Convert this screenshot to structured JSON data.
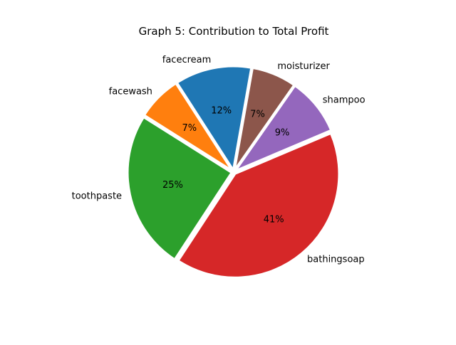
{
  "chart_data": {
    "type": "pie",
    "title": "Graph 5: Contribution to Total Profit",
    "categories": [
      "facecream",
      "facewash",
      "toothpaste",
      "bathingsoap",
      "shampoo",
      "moisturizer"
    ],
    "values": [
      12,
      7,
      25,
      41,
      9,
      7
    ],
    "value_labels": [
      "12%",
      "7%",
      "25%",
      "41%",
      "9%",
      "7%"
    ],
    "colors": [
      "#1f77b4",
      "#ff7f0e",
      "#2ca02c",
      "#d62728",
      "#9467bd",
      "#8c564b"
    ],
    "exploded": true,
    "legend": "none"
  }
}
